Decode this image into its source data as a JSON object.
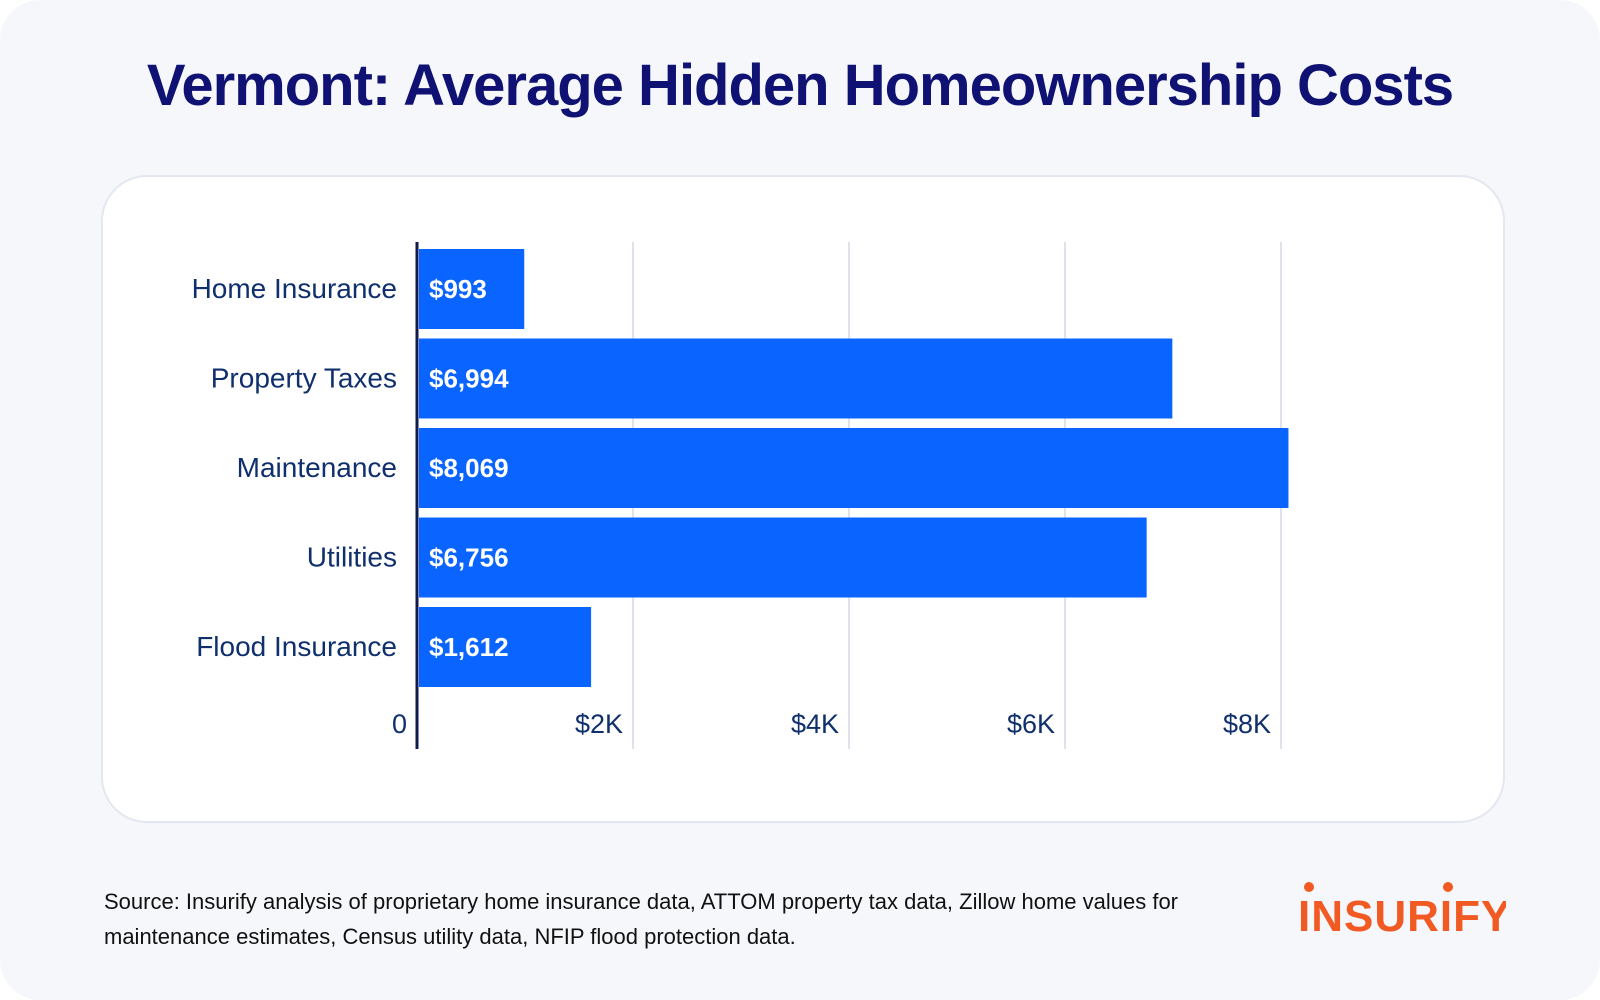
{
  "title": "Vermont: Average Hidden Homeownership Costs",
  "chart_data": {
    "type": "bar",
    "orientation": "horizontal",
    "categories": [
      "Home Insurance",
      "Property Taxes",
      "Maintenance",
      "Utilities",
      "Flood Insurance"
    ],
    "values": [
      993,
      6994,
      8069,
      6756,
      1612
    ],
    "data_labels": [
      "$993",
      "$6,994",
      "$8,069",
      "$6,756",
      "$1,612"
    ],
    "xlim": [
      0,
      8000
    ],
    "x_ticks": [
      0,
      2000,
      4000,
      6000,
      8000
    ],
    "x_tick_labels": [
      "0",
      "$2K",
      "$4K",
      "$6K",
      "$8K"
    ],
    "grid": true,
    "bar_color": "#0a64ff",
    "axis_color": "#0f1a4d",
    "grid_color": "#dfe2ea",
    "label_color": "#0f2f6d"
  },
  "source": "Source: Insurify analysis of proprietary home insurance data, ATTOM property tax data, Zillow home values for maintenance estimates, Census utility data, NFIP flood protection data.",
  "logo": {
    "text": "INSURIFY",
    "color": "#f15a22"
  }
}
